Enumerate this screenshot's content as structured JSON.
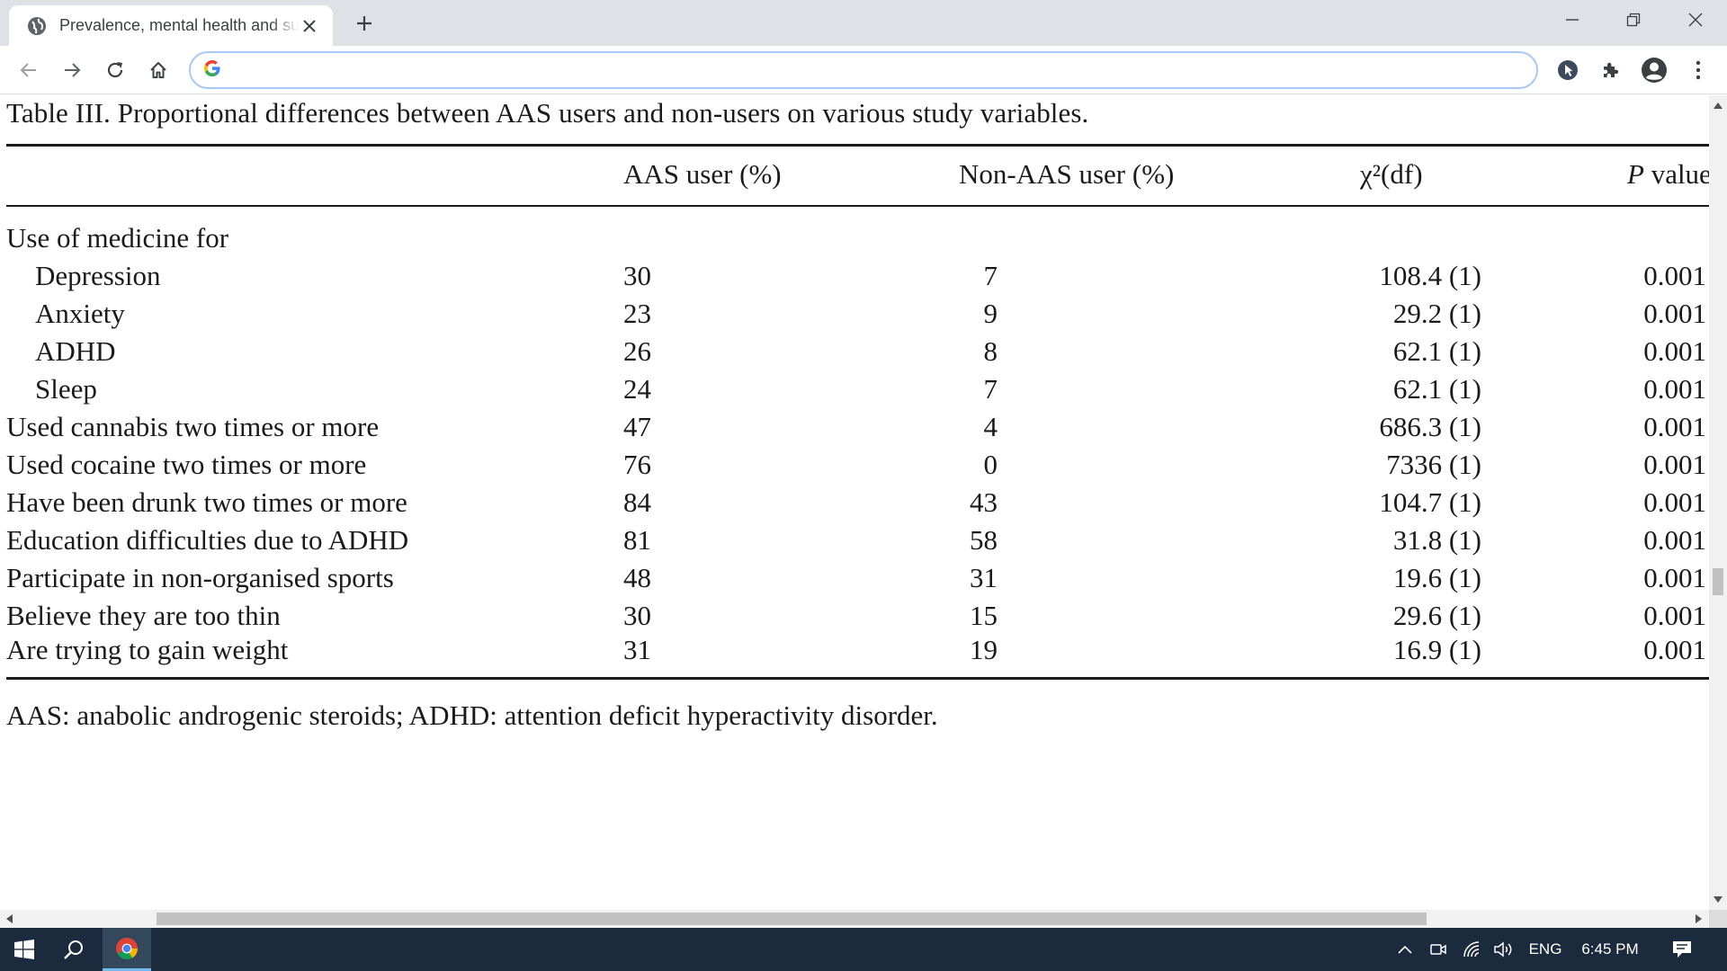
{
  "browser": {
    "tab_title": "Prevalence, mental health and substance use",
    "address_value": "",
    "colors": {
      "tabstrip": "#dee1e6",
      "omnibox_border": "#a8c7fa"
    }
  },
  "document": {
    "caption": "Table III.  Proportional differences between AAS users and non-users on various study variables.",
    "headers": {
      "aas": "AAS user (%)",
      "non_aas": "Non-AAS user (%)",
      "chi": "χ²(df)",
      "p_italic": "P",
      "p_rest": " value"
    },
    "group_label": "Use of medicine for",
    "rows": [
      {
        "label": "Depression",
        "aas": "30",
        "non_aas": "7",
        "chi": "108.4 (1)",
        "p": "0.001"
      },
      {
        "label": "Anxiety",
        "aas": "23",
        "non_aas": "9",
        "chi": "29.2 (1)",
        "p": "0.001"
      },
      {
        "label": "ADHD",
        "aas": "26",
        "non_aas": "8",
        "chi": "62.1 (1)",
        "p": "0.001"
      },
      {
        "label": "Sleep",
        "aas": "24",
        "non_aas": "7",
        "chi": "62.1 (1)",
        "p": "0.001"
      },
      {
        "label": "Used cannabis two times or more",
        "aas": "47",
        "non_aas": "4",
        "chi": "686.3 (1)",
        "p": "0.001"
      },
      {
        "label": "Used cocaine two times or more",
        "aas": "76",
        "non_aas": "0",
        "chi": "7336 (1)",
        "p": "0.001"
      },
      {
        "label": "Have been drunk two times or more",
        "aas": "84",
        "non_aas": "43",
        "chi": "104.7 (1)",
        "p": "0.001"
      },
      {
        "label": "Education difficulties due to ADHD",
        "aas": "81",
        "non_aas": "58",
        "chi": "31.8 (1)",
        "p": "0.001"
      },
      {
        "label": "Participate in non-organised sports",
        "aas": "48",
        "non_aas": "31",
        "chi": "19.6 (1)",
        "p": "0.001"
      },
      {
        "label": "Believe they are too thin",
        "aas": "30",
        "non_aas": "15",
        "chi": "29.6 (1)",
        "p": "0.001"
      },
      {
        "label": "Are trying to gain weight",
        "aas": "31",
        "non_aas": "19",
        "chi": "16.9 (1)",
        "p": "0.001"
      }
    ],
    "footnote": "AAS: anabolic androgenic steroids; ADHD: attention deficit hyperactivity disorder."
  },
  "taskbar": {
    "language": "ENG",
    "time": "6:45 PM",
    "color": "#1b2a3c"
  },
  "icons": {
    "tab_favicon": "globe-icon",
    "tab_close": "close-icon",
    "new_tab": "plus-icon",
    "back": "arrow-left-icon",
    "forward": "arrow-right-icon",
    "reload": "reload-icon",
    "home": "home-icon",
    "omnibox": "google-g-icon",
    "extensions": [
      "cursor-extension-icon",
      "puzzle-icon",
      "profile-icon",
      "kebab-menu-icon"
    ]
  }
}
